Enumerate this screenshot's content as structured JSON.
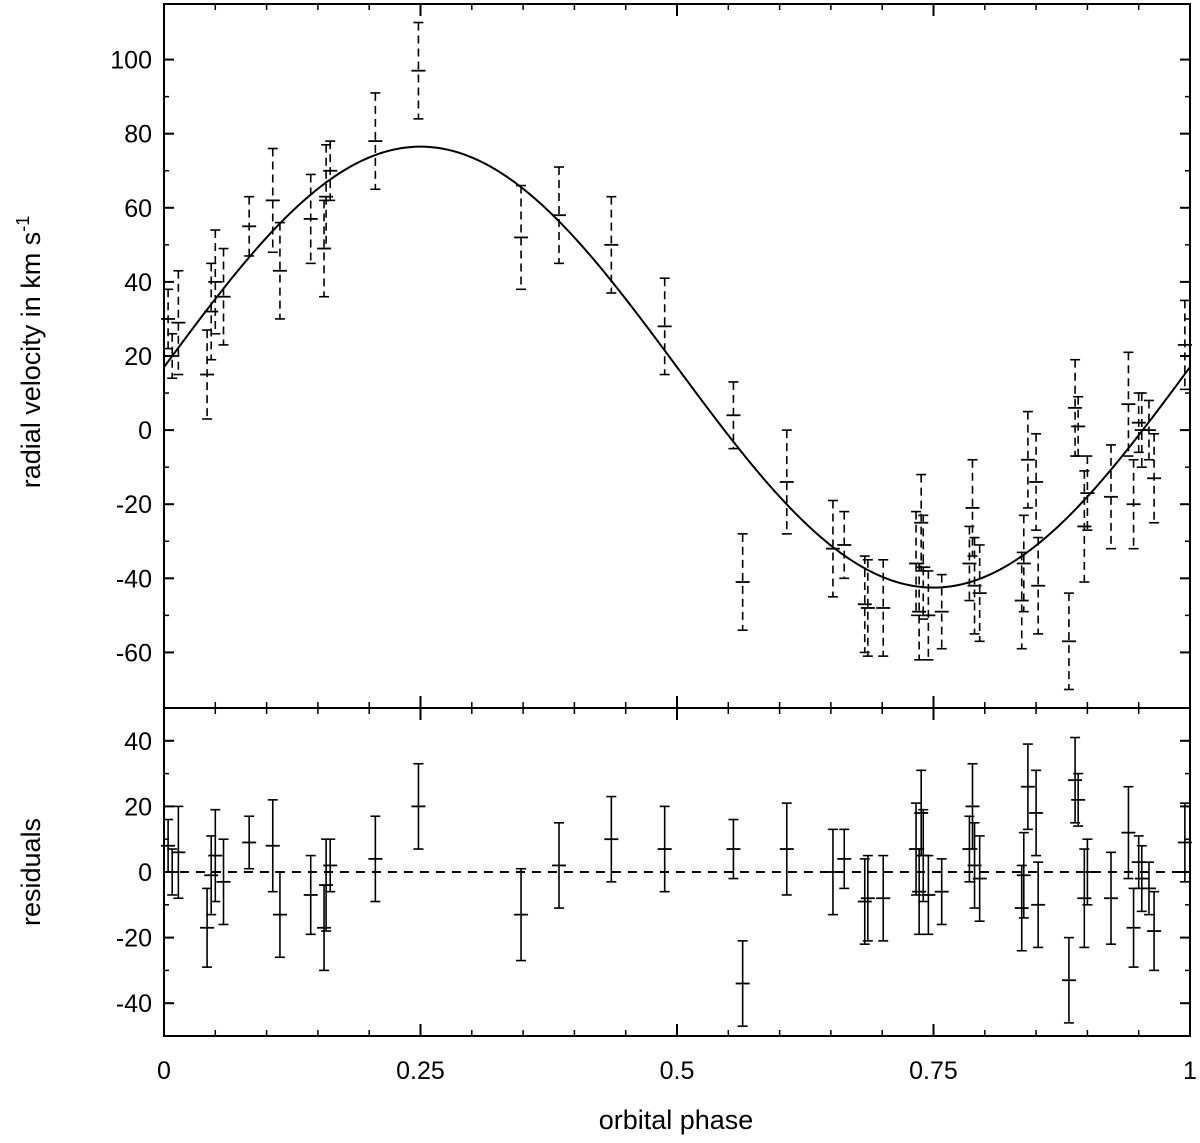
{
  "chart_data": {
    "type": "scatter",
    "x_axis": {
      "label": "orbital phase",
      "range": [
        0,
        1
      ],
      "ticks": [
        0,
        0.25,
        0.5,
        0.75,
        1
      ],
      "tick_labels": [
        "0",
        "0.25",
        "0.5",
        "0.75",
        "1"
      ]
    },
    "panels": [
      {
        "id": "rv",
        "ylabel": "radial velocity in km s",
        "ylabel_superscript": "-1",
        "ylim": [
          -75,
          115
        ],
        "yticks": [
          -60,
          -40,
          -20,
          0,
          20,
          40,
          60,
          80,
          100
        ],
        "ytick_labels": [
          "-60",
          "-40",
          "-20",
          "0",
          "20",
          "40",
          "60",
          "80",
          "100"
        ],
        "model": {
          "type": "sine",
          "gamma": 17,
          "K": 59.5,
          "phase_of_max": 0.25
        },
        "points": [
          [
            0.004,
            30,
            8
          ],
          [
            0.008,
            20,
            6
          ],
          [
            0.014,
            29,
            14
          ],
          [
            0.042,
            15,
            12
          ],
          [
            0.046,
            32,
            13
          ],
          [
            0.05,
            40,
            14
          ],
          [
            0.058,
            36,
            13
          ],
          [
            0.083,
            55,
            8
          ],
          [
            0.106,
            62,
            14
          ],
          [
            0.113,
            43,
            13
          ],
          [
            0.143,
            57,
            12
          ],
          [
            0.156,
            49,
            13
          ],
          [
            0.158,
            63,
            14
          ],
          [
            0.162,
            70,
            8
          ],
          [
            0.206,
            78,
            13
          ],
          [
            0.248,
            97,
            13
          ],
          [
            0.348,
            52,
            14
          ],
          [
            0.385,
            58,
            13
          ],
          [
            0.436,
            50,
            13
          ],
          [
            0.488,
            28,
            13
          ],
          [
            0.555,
            4,
            9
          ],
          [
            0.564,
            -41,
            13
          ],
          [
            0.607,
            -14,
            14
          ],
          [
            0.652,
            -32,
            13
          ],
          [
            0.663,
            -31,
            9
          ],
          [
            0.683,
            -47,
            13
          ],
          [
            0.686,
            -48,
            13
          ],
          [
            0.701,
            -48,
            13
          ],
          [
            0.733,
            -36,
            14
          ],
          [
            0.736,
            -49,
            13
          ],
          [
            0.738,
            -25,
            13
          ],
          [
            0.74,
            -37,
            14
          ],
          [
            0.745,
            -50,
            12
          ],
          [
            0.758,
            -49,
            10
          ],
          [
            0.785,
            -36,
            10
          ],
          [
            0.788,
            -21,
            13
          ],
          [
            0.79,
            -42,
            13
          ],
          [
            0.795,
            -44,
            13
          ],
          [
            0.836,
            -46,
            13
          ],
          [
            0.838,
            -36,
            13
          ],
          [
            0.842,
            -8,
            13
          ],
          [
            0.85,
            -14,
            13
          ],
          [
            0.852,
            -42,
            13
          ],
          [
            0.882,
            -57,
            13
          ],
          [
            0.888,
            6,
            13
          ],
          [
            0.891,
            1,
            8
          ],
          [
            0.897,
            -26,
            15
          ],
          [
            0.9,
            -17,
            10
          ],
          [
            0.923,
            -18,
            14
          ],
          [
            0.94,
            7,
            14
          ],
          [
            0.945,
            -20,
            12
          ],
          [
            0.95,
            2,
            8
          ],
          [
            0.953,
            0,
            10
          ],
          [
            0.96,
            0,
            8
          ],
          [
            0.965,
            -13,
            12
          ],
          [
            0.995,
            23,
            12
          ]
        ]
      },
      {
        "id": "residuals",
        "ylabel": "residuals",
        "ylim": [
          -50,
          50
        ],
        "yticks": [
          -40,
          -20,
          0,
          20,
          40
        ],
        "ytick_labels": [
          "-40",
          "-20",
          "0",
          "20",
          "40"
        ],
        "zero_line": "dashed",
        "points": [
          [
            0.004,
            8,
            8
          ],
          [
            0.008,
            0,
            7
          ],
          [
            0.014,
            6,
            14
          ],
          [
            0.042,
            -17,
            12
          ],
          [
            0.046,
            -1,
            12
          ],
          [
            0.05,
            5,
            14
          ],
          [
            0.058,
            -3,
            13
          ],
          [
            0.083,
            9,
            8
          ],
          [
            0.106,
            8,
            14
          ],
          [
            0.113,
            -13,
            13
          ],
          [
            0.143,
            -7,
            12
          ],
          [
            0.156,
            -17,
            13
          ],
          [
            0.158,
            -4,
            14
          ],
          [
            0.162,
            2,
            8
          ],
          [
            0.206,
            4,
            13
          ],
          [
            0.248,
            20,
            13
          ],
          [
            0.348,
            -13,
            14
          ],
          [
            0.385,
            2,
            13
          ],
          [
            0.436,
            10,
            13
          ],
          [
            0.488,
            7,
            13
          ],
          [
            0.555,
            7,
            9
          ],
          [
            0.564,
            -34,
            13
          ],
          [
            0.607,
            7,
            14
          ],
          [
            0.652,
            0,
            13
          ],
          [
            0.663,
            4,
            9
          ],
          [
            0.683,
            -9,
            13
          ],
          [
            0.686,
            -8,
            13
          ],
          [
            0.701,
            -8,
            13
          ],
          [
            0.733,
            7,
            14
          ],
          [
            0.736,
            -6,
            13
          ],
          [
            0.738,
            18,
            13
          ],
          [
            0.74,
            5,
            14
          ],
          [
            0.745,
            -7,
            12
          ],
          [
            0.758,
            -6,
            10
          ],
          [
            0.785,
            7,
            10
          ],
          [
            0.788,
            20,
            13
          ],
          [
            0.79,
            2,
            13
          ],
          [
            0.795,
            -2,
            13
          ],
          [
            0.836,
            -11,
            13
          ],
          [
            0.838,
            -1,
            13
          ],
          [
            0.842,
            26,
            13
          ],
          [
            0.85,
            18,
            13
          ],
          [
            0.852,
            -10,
            13
          ],
          [
            0.882,
            -33,
            13
          ],
          [
            0.888,
            28,
            13
          ],
          [
            0.891,
            22,
            8
          ],
          [
            0.897,
            -8,
            15
          ],
          [
            0.9,
            0,
            10
          ],
          [
            0.923,
            -8,
            14
          ],
          [
            0.94,
            12,
            14
          ],
          [
            0.945,
            -17,
            12
          ],
          [
            0.95,
            3,
            8
          ],
          [
            0.953,
            -2,
            10
          ],
          [
            0.96,
            -5,
            8
          ],
          [
            0.965,
            -18,
            12
          ],
          [
            0.995,
            9,
            12
          ]
        ]
      }
    ]
  }
}
